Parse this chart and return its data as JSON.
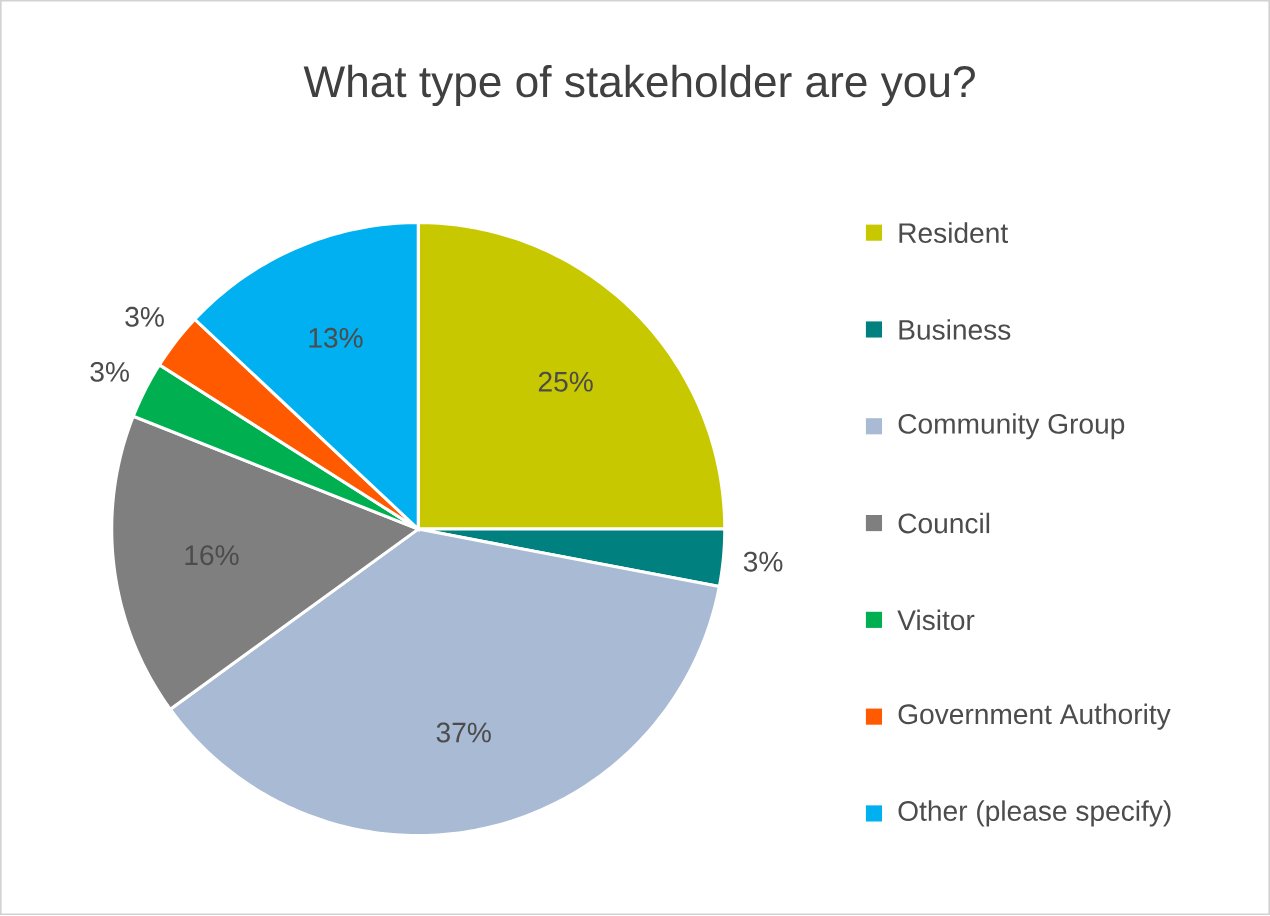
{
  "chart_data": {
    "type": "pie",
    "title": "What type of stakeholder are you?",
    "categories": [
      "Resident",
      "Business",
      "Community Group",
      "Council",
      "Visitor",
      "Government Authority",
      "Other (please specify)"
    ],
    "values": [
      25,
      3,
      37,
      16,
      3,
      3,
      13
    ],
    "colors": [
      "#c8c800",
      "#00807f",
      "#a9bad5",
      "#7f7f7f",
      "#00b050",
      "#ff5a00",
      "#00b0f0"
    ],
    "value_labels": [
      "25%",
      "3%",
      "37%",
      "16%",
      "3%",
      "3%",
      "13%"
    ],
    "legend": "right"
  }
}
